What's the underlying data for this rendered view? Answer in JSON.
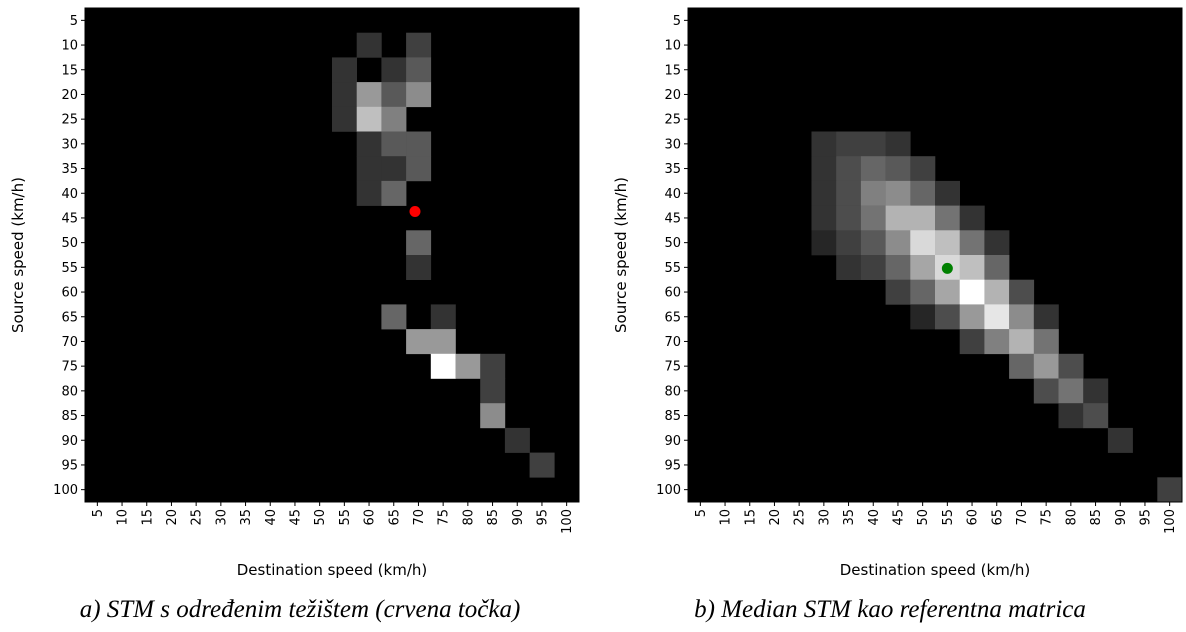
{
  "chart_data": [
    {
      "type": "heatmap",
      "caption": "a)  STM s određenim težištem (crvena točka)",
      "xlabel": "Destination speed (km/h)",
      "ylabel": "Source speed (km/h)",
      "x_ticks": [
        "5",
        "10",
        "15",
        "20",
        "25",
        "30",
        "35",
        "40",
        "45",
        "50",
        "55",
        "60",
        "65",
        "70",
        "75",
        "80",
        "85",
        "90",
        "95",
        "100"
      ],
      "y_ticks": [
        "5",
        "10",
        "15",
        "20",
        "25",
        "30",
        "35",
        "40",
        "45",
        "50",
        "55",
        "60",
        "65",
        "70",
        "75",
        "80",
        "85",
        "90",
        "95",
        "100"
      ],
      "colormap": "gray",
      "cells": [
        {
          "y": 10,
          "x": 60,
          "v": 0.2
        },
        {
          "y": 10,
          "x": 70,
          "v": 0.25
        },
        {
          "y": 15,
          "x": 55,
          "v": 0.2
        },
        {
          "y": 15,
          "x": 65,
          "v": 0.2
        },
        {
          "y": 15,
          "x": 70,
          "v": 0.35
        },
        {
          "y": 20,
          "x": 55,
          "v": 0.2
        },
        {
          "y": 20,
          "x": 60,
          "v": 0.6
        },
        {
          "y": 20,
          "x": 65,
          "v": 0.35
        },
        {
          "y": 20,
          "x": 70,
          "v": 0.55
        },
        {
          "y": 25,
          "x": 55,
          "v": 0.2
        },
        {
          "y": 25,
          "x": 60,
          "v": 0.75
        },
        {
          "y": 25,
          "x": 65,
          "v": 0.5
        },
        {
          "y": 30,
          "x": 60,
          "v": 0.2
        },
        {
          "y": 30,
          "x": 65,
          "v": 0.35
        },
        {
          "y": 30,
          "x": 70,
          "v": 0.35
        },
        {
          "y": 35,
          "x": 60,
          "v": 0.2
        },
        {
          "y": 35,
          "x": 65,
          "v": 0.2
        },
        {
          "y": 35,
          "x": 70,
          "v": 0.35
        },
        {
          "y": 40,
          "x": 60,
          "v": 0.2
        },
        {
          "y": 40,
          "x": 65,
          "v": 0.4
        },
        {
          "y": 50,
          "x": 70,
          "v": 0.4
        },
        {
          "y": 55,
          "x": 70,
          "v": 0.2
        },
        {
          "y": 65,
          "x": 65,
          "v": 0.4
        },
        {
          "y": 65,
          "x": 75,
          "v": 0.2
        },
        {
          "y": 70,
          "x": 70,
          "v": 0.6
        },
        {
          "y": 70,
          "x": 75,
          "v": 0.6
        },
        {
          "y": 75,
          "x": 75,
          "v": 1.0
        },
        {
          "y": 75,
          "x": 80,
          "v": 0.6
        },
        {
          "y": 75,
          "x": 85,
          "v": 0.25
        },
        {
          "y": 80,
          "x": 85,
          "v": 0.25
        },
        {
          "y": 85,
          "x": 85,
          "v": 0.55
        },
        {
          "y": 90,
          "x": 90,
          "v": 0.2
        },
        {
          "y": 95,
          "x": 95,
          "v": 0.25
        }
      ],
      "marker": {
        "x": 69.3,
        "y": 43.7,
        "color": "#ff0000",
        "meaning": "centroid"
      }
    },
    {
      "type": "heatmap",
      "caption": "b)  Median STM kao referentna matrica",
      "xlabel": "Destination speed (km/h)",
      "ylabel": "Source speed (km/h)",
      "x_ticks": [
        "5",
        "10",
        "15",
        "20",
        "25",
        "30",
        "35",
        "40",
        "45",
        "50",
        "55",
        "60",
        "65",
        "70",
        "75",
        "80",
        "85",
        "90",
        "95",
        "100"
      ],
      "y_ticks": [
        "5",
        "10",
        "15",
        "20",
        "25",
        "30",
        "35",
        "40",
        "45",
        "50",
        "55",
        "60",
        "65",
        "70",
        "75",
        "80",
        "85",
        "90",
        "95",
        "100"
      ],
      "colormap": "gray",
      "cells": [
        {
          "y": 30,
          "x": 30,
          "v": 0.2
        },
        {
          "y": 30,
          "x": 35,
          "v": 0.25
        },
        {
          "y": 30,
          "x": 40,
          "v": 0.25
        },
        {
          "y": 30,
          "x": 45,
          "v": 0.2
        },
        {
          "y": 35,
          "x": 30,
          "v": 0.2
        },
        {
          "y": 35,
          "x": 35,
          "v": 0.3
        },
        {
          "y": 35,
          "x": 40,
          "v": 0.4
        },
        {
          "y": 35,
          "x": 45,
          "v": 0.35
        },
        {
          "y": 35,
          "x": 50,
          "v": 0.25
        },
        {
          "y": 40,
          "x": 30,
          "v": 0.2
        },
        {
          "y": 40,
          "x": 35,
          "v": 0.3
        },
        {
          "y": 40,
          "x": 40,
          "v": 0.5
        },
        {
          "y": 40,
          "x": 45,
          "v": 0.55
        },
        {
          "y": 40,
          "x": 50,
          "v": 0.4
        },
        {
          "y": 40,
          "x": 55,
          "v": 0.2
        },
        {
          "y": 45,
          "x": 30,
          "v": 0.2
        },
        {
          "y": 45,
          "x": 35,
          "v": 0.3
        },
        {
          "y": 45,
          "x": 40,
          "v": 0.45
        },
        {
          "y": 45,
          "x": 45,
          "v": 0.7
        },
        {
          "y": 45,
          "x": 50,
          "v": 0.7
        },
        {
          "y": 45,
          "x": 55,
          "v": 0.45
        },
        {
          "y": 45,
          "x": 60,
          "v": 0.2
        },
        {
          "y": 50,
          "x": 30,
          "v": 0.15
        },
        {
          "y": 50,
          "x": 35,
          "v": 0.25
        },
        {
          "y": 50,
          "x": 40,
          "v": 0.35
        },
        {
          "y": 50,
          "x": 45,
          "v": 0.55
        },
        {
          "y": 50,
          "x": 50,
          "v": 0.85
        },
        {
          "y": 50,
          "x": 55,
          "v": 0.75
        },
        {
          "y": 50,
          "x": 60,
          "v": 0.45
        },
        {
          "y": 50,
          "x": 65,
          "v": 0.2
        },
        {
          "y": 55,
          "x": 35,
          "v": 0.2
        },
        {
          "y": 55,
          "x": 40,
          "v": 0.25
        },
        {
          "y": 55,
          "x": 45,
          "v": 0.4
        },
        {
          "y": 55,
          "x": 50,
          "v": 0.65
        },
        {
          "y": 55,
          "x": 55,
          "v": 0.85
        },
        {
          "y": 55,
          "x": 60,
          "v": 0.75
        },
        {
          "y": 55,
          "x": 65,
          "v": 0.4
        },
        {
          "y": 60,
          "x": 45,
          "v": 0.25
        },
        {
          "y": 60,
          "x": 50,
          "v": 0.4
        },
        {
          "y": 60,
          "x": 55,
          "v": 0.65
        },
        {
          "y": 60,
          "x": 60,
          "v": 1.0
        },
        {
          "y": 60,
          "x": 65,
          "v": 0.7
        },
        {
          "y": 60,
          "x": 70,
          "v": 0.3
        },
        {
          "y": 65,
          "x": 50,
          "v": 0.15
        },
        {
          "y": 65,
          "x": 55,
          "v": 0.3
        },
        {
          "y": 65,
          "x": 60,
          "v": 0.6
        },
        {
          "y": 65,
          "x": 65,
          "v": 0.9
        },
        {
          "y": 65,
          "x": 70,
          "v": 0.55
        },
        {
          "y": 65,
          "x": 75,
          "v": 0.2
        },
        {
          "y": 70,
          "x": 60,
          "v": 0.25
        },
        {
          "y": 70,
          "x": 65,
          "v": 0.5
        },
        {
          "y": 70,
          "x": 70,
          "v": 0.7
        },
        {
          "y": 70,
          "x": 75,
          "v": 0.45
        },
        {
          "y": 75,
          "x": 70,
          "v": 0.4
        },
        {
          "y": 75,
          "x": 75,
          "v": 0.6
        },
        {
          "y": 75,
          "x": 80,
          "v": 0.3
        },
        {
          "y": 80,
          "x": 75,
          "v": 0.3
        },
        {
          "y": 80,
          "x": 80,
          "v": 0.45
        },
        {
          "y": 80,
          "x": 85,
          "v": 0.2
        },
        {
          "y": 85,
          "x": 80,
          "v": 0.2
        },
        {
          "y": 85,
          "x": 85,
          "v": 0.3
        },
        {
          "y": 90,
          "x": 90,
          "v": 0.2
        },
        {
          "y": 100,
          "x": 100,
          "v": 0.25
        }
      ],
      "marker": {
        "x": 55,
        "y": 55.2,
        "color": "#008000",
        "meaning": "centroid"
      }
    }
  ]
}
